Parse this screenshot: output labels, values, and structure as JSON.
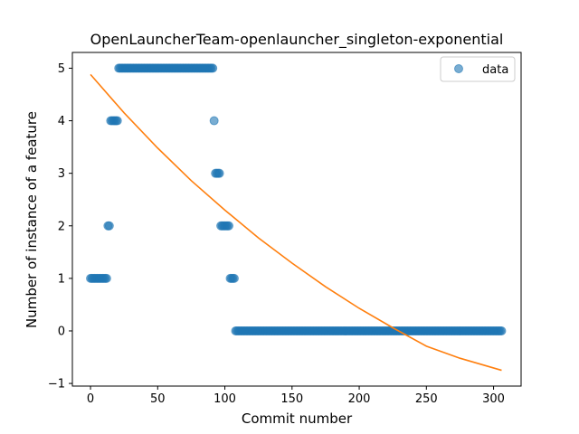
{
  "chart_data": {
    "type": "scatter",
    "title": "OpenLauncherTeam-openlauncher_singleton-exponential",
    "xlabel": "Commit number",
    "ylabel": "Number of instance of a feature",
    "xlim": [
      -13.5,
      320.5
    ],
    "ylim": [
      -1.05,
      5.3
    ],
    "xticks": [
      0,
      50,
      100,
      150,
      200,
      250,
      300
    ],
    "yticks": [
      -1,
      0,
      1,
      2,
      3,
      4,
      5
    ],
    "legend": {
      "position": "top-right",
      "label": "data"
    },
    "colors": {
      "scatter": "#1f77b4",
      "fit": "#ff7f0e"
    },
    "scatter_segments": [
      {
        "x_start": 0,
        "x_end": 12,
        "y": 1
      },
      {
        "x_start": 13,
        "x_end": 14,
        "y": 2
      },
      {
        "x_start": 15,
        "x_end": 20,
        "y": 4
      },
      {
        "x_start": 21,
        "x_end": 91,
        "y": 5
      },
      {
        "x_start": 92,
        "x_end": 92,
        "y": 4
      },
      {
        "x_start": 93,
        "x_end": 96,
        "y": 3
      },
      {
        "x_start": 97,
        "x_end": 103,
        "y": 2
      },
      {
        "x_start": 104,
        "x_end": 107,
        "y": 1
      },
      {
        "x_start": 108,
        "x_end": 306,
        "y": 0
      }
    ],
    "fit_line": {
      "x": [
        0,
        25,
        50,
        75,
        100,
        125,
        150,
        175,
        200,
        225,
        250,
        275,
        306
      ],
      "y": [
        4.88,
        4.15,
        3.48,
        2.86,
        2.3,
        1.77,
        1.29,
        0.84,
        0.43,
        0.06,
        -0.29,
        -0.52,
        -0.75
      ]
    }
  }
}
